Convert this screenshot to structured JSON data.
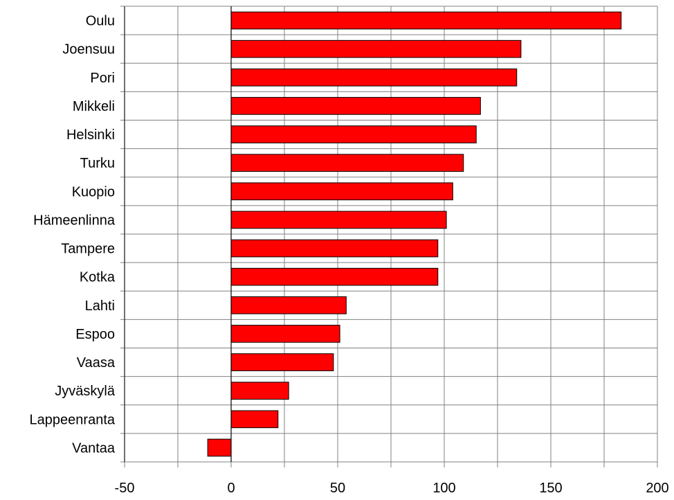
{
  "chart_data": {
    "type": "bar",
    "orientation": "horizontal",
    "categories": [
      "Oulu",
      "Joensuu",
      "Pori",
      "Mikkeli",
      "Helsinki",
      "Turku",
      "Kuopio",
      "Hämeenlinna",
      "Tampere",
      "Kotka",
      "Lahti",
      "Espoo",
      "Vaasa",
      "Jyväskylä",
      "Lappeenranta",
      "Vantaa"
    ],
    "values": [
      183,
      136,
      134,
      117,
      115,
      109,
      104,
      101,
      97,
      97,
      54,
      51,
      48,
      27,
      22,
      -11
    ],
    "xlim": [
      -50,
      200
    ],
    "xticks": [
      -50,
      0,
      50,
      100,
      150,
      200
    ],
    "minor_grid_step": 25,
    "title": "",
    "xlabel": "",
    "ylabel": "",
    "grid": true,
    "bar_color": "#ff0000",
    "bar_edge_color": "#000000",
    "grid_color": "#808080"
  }
}
